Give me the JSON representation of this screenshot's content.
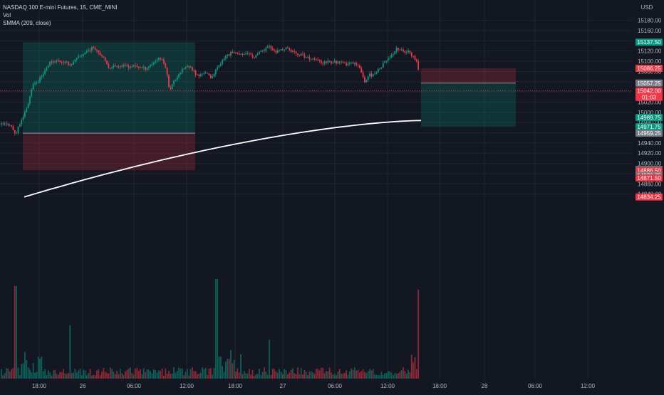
{
  "chart_data": {
    "type": "candlestick",
    "symbol_line": "NASDAQ 100 E-mini Futures, 15, CME_MINI",
    "volume_label": "Vol",
    "indicator_label": "SMMA (209, close)",
    "currency": "USD",
    "y_ticks": [
      15180,
      15160,
      15140,
      15120,
      15100,
      15080,
      15060,
      15040,
      15020,
      15000,
      14980,
      14960,
      14940,
      14920,
      14900,
      14880,
      14860,
      14840
    ],
    "y_tick_labels": [
      "15180.00",
      "15160.00",
      "15140.00",
      "15120.00",
      "15100.00",
      "15080.00",
      "15060.00",
      "15040.00",
      "15020.00",
      "15000.00",
      "14980.00",
      "14960.00",
      "14940.00",
      "14920.00",
      "14900.00",
      "14880.00",
      "14860.00",
      "14840.00"
    ],
    "x_tick_labels": [
      "18:00",
      "26",
      "06:00",
      "12:00",
      "18:00",
      "27",
      "06:00",
      "12:00",
      "18:00",
      "28",
      "06:00",
      "12:00"
    ],
    "ylim": [
      14832,
      15190
    ],
    "price_labels": [
      {
        "text": "15137.50",
        "value": 15137.5,
        "color": "#089981"
      },
      {
        "text": "15086.25",
        "value": 15086.25,
        "color": "#f23645"
      },
      {
        "text": "15057.25",
        "value": 15057.25,
        "color": "#787b86"
      },
      {
        "text": "15042.00",
        "value": 15042.0,
        "color": "#f23645",
        "sub": "01:03"
      },
      {
        "text": "14989.75",
        "value": 14989.75,
        "color": "#089981"
      },
      {
        "text": "14971.75",
        "value": 14971.75,
        "color": "#089981"
      },
      {
        "text": "14959.25",
        "value": 14959.25,
        "color": "#787b86"
      },
      {
        "text": "14888.25",
        "value": 14888.25,
        "color": "#089981"
      },
      {
        "text": "14886.50",
        "value": 14886.5,
        "color": "#f23645"
      },
      {
        "text": "14876.75",
        "value": 14876.75,
        "color": "#787b86"
      },
      {
        "text": "14871.50",
        "value": 14871.5,
        "color": "#f23645"
      },
      {
        "text": "14834.25",
        "value": 14834.25,
        "color": "#f23645"
      }
    ],
    "current_price": 15042.0,
    "smma": {
      "start": 14834.25,
      "end": 14984
    },
    "positions": [
      {
        "side": "long",
        "entry": 14959.25,
        "target": 15137.5,
        "stop": 14886.5
      },
      {
        "side": "long",
        "entry": 15057.25,
        "target": 15086.25,
        "stop": 14971.75
      }
    ],
    "grid": true,
    "colors": {
      "up": "#089981",
      "down": "#f23645",
      "bg": "#131722",
      "grid": "#1f2430",
      "smma": "#ffffff"
    }
  }
}
